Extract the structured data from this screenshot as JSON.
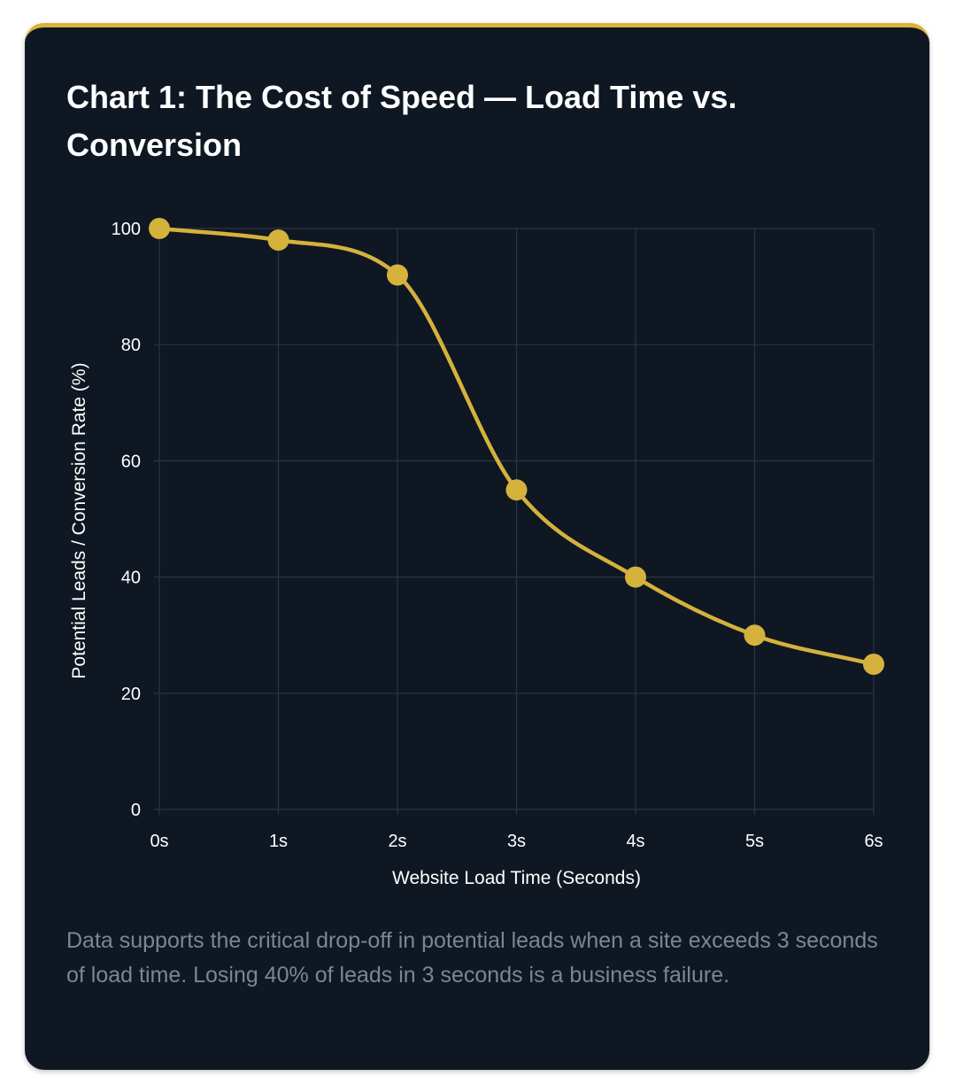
{
  "title": "Chart 1: The Cost of Speed — Load Time vs. Conversion",
  "caption": "Data supports the critical drop-off in potential leads when a site exceeds 3 seconds of load time. Losing 40% of leads in 3 seconds is a business failure.",
  "colors": {
    "background": "#0f1723",
    "accent": "#d9b23a",
    "line": "#d4b23c",
    "grid": "#2a3443",
    "caption": "#7d8593"
  },
  "chart_data": {
    "type": "line",
    "title": "Chart 1: The Cost of Speed — Load Time vs. Conversion",
    "xlabel": "Website Load Time (Seconds)",
    "ylabel": "Potential Leads / Conversion Rate (%)",
    "categories": [
      "0s",
      "1s",
      "2s",
      "3s",
      "4s",
      "5s",
      "6s"
    ],
    "series": [
      {
        "name": "Potential Leads / Conversion Rate (%)",
        "values": [
          100,
          98,
          92,
          55,
          40,
          30,
          25
        ]
      }
    ],
    "ylim": [
      0,
      100
    ],
    "yticks": [
      "0",
      "20",
      "40",
      "60",
      "80",
      "100"
    ],
    "grid": true,
    "legend": "none"
  }
}
